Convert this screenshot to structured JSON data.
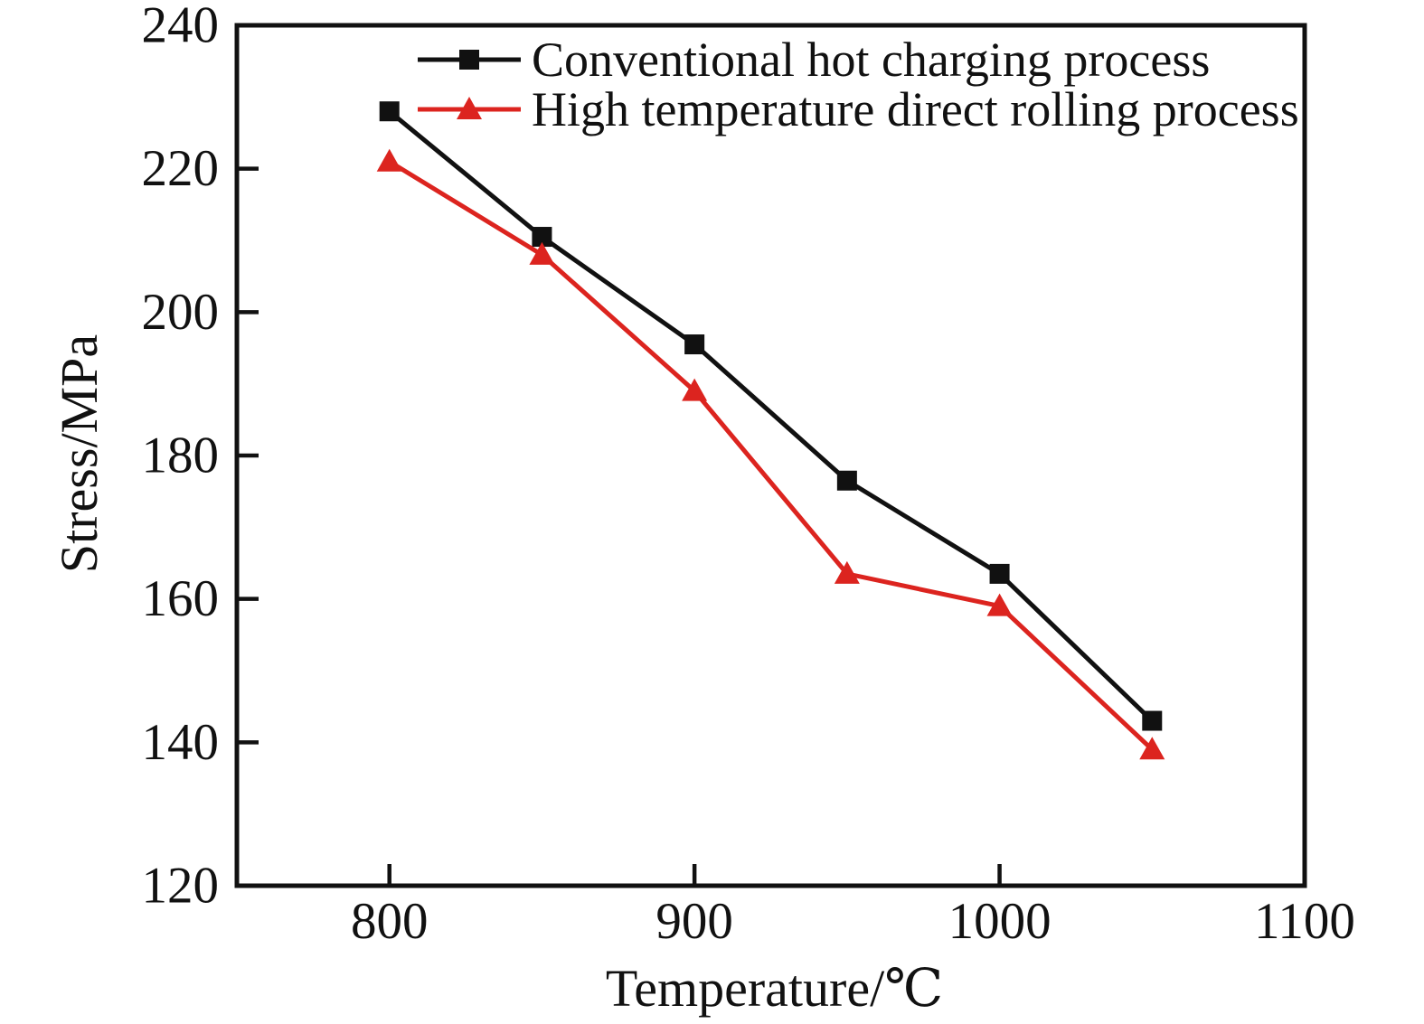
{
  "chart_data": {
    "type": "line",
    "title": "",
    "xlabel": "Temperature/℃",
    "ylabel": "Stress/MPa",
    "x": [
      800,
      850,
      900,
      950,
      1000,
      1050
    ],
    "xlim": [
      750,
      1100
    ],
    "ylim": [
      120,
      240
    ],
    "x_ticks": [
      800,
      900,
      1000,
      1100
    ],
    "y_ticks": [
      120,
      140,
      160,
      180,
      200,
      220,
      240
    ],
    "grid": false,
    "legend_position": "top-inside",
    "axis_color": "#111111",
    "series": [
      {
        "name": "Conventional hot charging process",
        "color": "#111111",
        "marker": "square",
        "values": [
          228,
          210.5,
          195.5,
          176.5,
          163.5,
          143
        ]
      },
      {
        "name": "High temperature direct rolling process",
        "color": "#dc241f",
        "marker": "triangle",
        "values": [
          221,
          208,
          189,
          163.5,
          159,
          139
        ]
      }
    ]
  }
}
